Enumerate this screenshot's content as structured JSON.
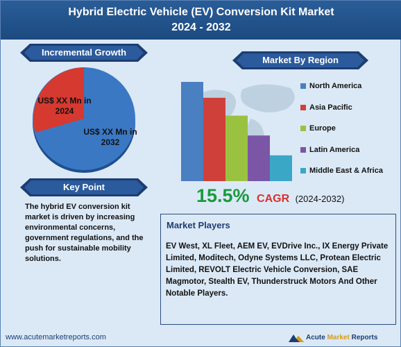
{
  "header": {
    "title_line1": "Hybrid Electric Vehicle (EV) Conversion Kit Market",
    "title_line2": "2024 - 2032"
  },
  "growth": {
    "label": "Incremental Growth",
    "label_2024": "US$ XX Mn in 2024",
    "label_2032": "US$ XX Mn in 2032",
    "colors": {
      "y2024": "#d5392f",
      "y2032": "#3b78c4"
    }
  },
  "key_point": {
    "label": "Key Point",
    "text": "The hybrid EV conversion kit market is driven by increasing environmental concerns, government regulations, and the push for sustainable mobility solutions."
  },
  "region": {
    "label": "Market By Region"
  },
  "chart_data": {
    "type": "bar",
    "title": "Market By Region",
    "categories": [
      "North America",
      "Asia Pacific",
      "Europe",
      "Latin America",
      "Middle East & Africa"
    ],
    "values": [
      5,
      4.2,
      3.3,
      2.3,
      1.3
    ],
    "colors": [
      "#4a7fc1",
      "#d0403b",
      "#9ac241",
      "#7b56a6",
      "#3ba7c7"
    ],
    "legend": "right",
    "grid": false
  },
  "cagr": {
    "value": "15.5%",
    "label": "CAGR",
    "years": "(2024-2032)"
  },
  "players": {
    "title": "Market Players",
    "text": "EV West, XL Fleet, AEM EV, EVDrive Inc., IX Energy Private Limited, Moditech, Odyne Systems LLC, Protean Electric Limited, REVOLT Electric Vehicle Conversion, SAE Magmotor, Stealth EV, Thunderstruck Motors And Other Notable Players."
  },
  "footer": {
    "url": "www.acutemarketreports.com",
    "brand_acute": "Acute",
    "brand_market": "Market",
    "brand_reports": "Reports"
  }
}
